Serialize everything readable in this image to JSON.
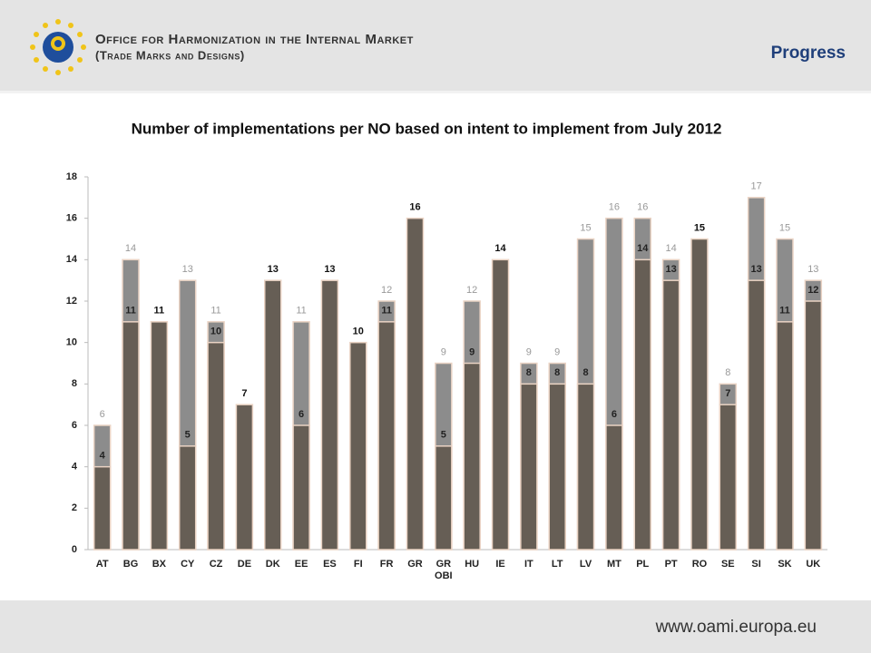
{
  "header": {
    "org": "Office for Harmonization in the Internal Market",
    "sub": "(Trade Marks and Designs)",
    "section": "Progress"
  },
  "footer": "www.oami.europa.eu",
  "chart_data": {
    "type": "bar",
    "overlap": true,
    "title": "Number of implementations per NO based on intent to implement from July 2012",
    "categories": [
      "AT",
      "BG",
      "BX",
      "CY",
      "CZ",
      "DE",
      "DK",
      "EE",
      "ES",
      "FI",
      "FR",
      "GR",
      "GR\nOBI",
      "HU",
      "IE",
      "IT",
      "LT",
      "LV",
      "MT",
      "PL",
      "PT",
      "RO",
      "SE",
      "SI",
      "SK",
      "UK"
    ],
    "series": [
      {
        "color": "#8c8c8c",
        "values": [
          6,
          14,
          null,
          13,
          11,
          null,
          null,
          11,
          null,
          null,
          12,
          null,
          9,
          12,
          null,
          9,
          9,
          15,
          16,
          16,
          14,
          null,
          8,
          17,
          15,
          13
        ]
      },
      {
        "color": "#665e55",
        "values": [
          4,
          11,
          11,
          5,
          10,
          7,
          13,
          6,
          13,
          10,
          11,
          16,
          5,
          9,
          14,
          8,
          8,
          8,
          6,
          14,
          13,
          15,
          7,
          13,
          11,
          12
        ]
      }
    ],
    "ylim": [
      0,
      18
    ],
    "yticks": [
      0,
      2,
      4,
      6,
      8,
      10,
      12,
      14,
      16,
      18
    ]
  }
}
